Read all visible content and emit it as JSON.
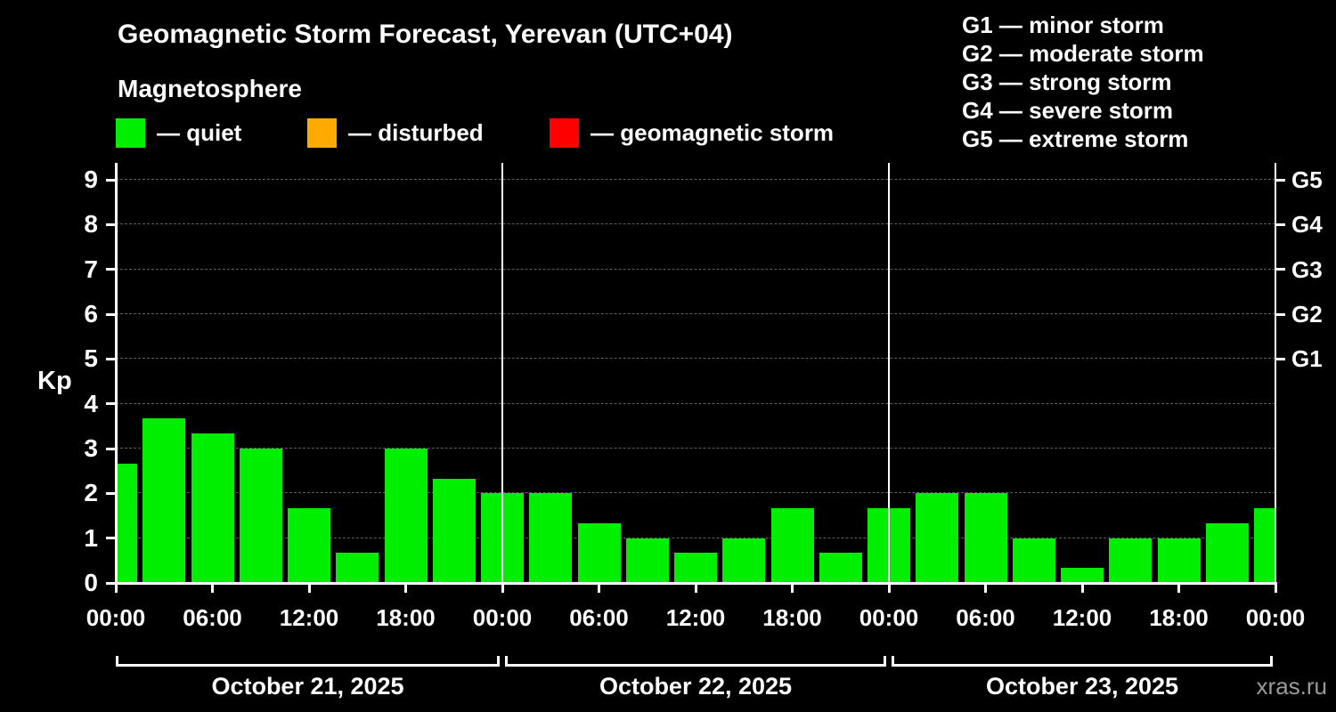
{
  "title": "Geomagnetic Storm Forecast, Yerevan (UTC+04)",
  "subtitle": "Magnetosphere",
  "watermark": "xras.ru",
  "legend": {
    "items": [
      {
        "label": "— quiet",
        "color": "#00ee00"
      },
      {
        "label": "— disturbed",
        "color": "#ffaa00"
      },
      {
        "label": "— geomagnetic storm",
        "color": "#ff0000"
      }
    ]
  },
  "storm_scale_legend": [
    "G1 — minor storm",
    "G2 — moderate storm",
    "G3 — strong storm",
    "G4 — severe storm",
    "G5 — extreme storm"
  ],
  "chart_data": {
    "type": "bar",
    "title": "Geomagnetic Storm Forecast, Yerevan (UTC+04)",
    "ylabel": "Kp",
    "ylim": [
      0,
      9.4
    ],
    "yticks": [
      0,
      1,
      2,
      3,
      4,
      5,
      6,
      7,
      8,
      9
    ],
    "grid": true,
    "bar_interval_hours": 3,
    "bar_color": "#00ee00",
    "bar_status_all": "quiet",
    "values": [
      2.67,
      3.67,
      3.33,
      3.0,
      1.67,
      0.67,
      3.0,
      2.33,
      2.0,
      2.0,
      1.33,
      1.0,
      0.67,
      1.0,
      1.67,
      0.67,
      1.67,
      2.0,
      2.0,
      1.0,
      0.33,
      1.0,
      1.0,
      1.33,
      1.67
    ],
    "x_tick_labels": [
      "00:00",
      "06:00",
      "12:00",
      "18:00",
      "00:00",
      "06:00",
      "12:00",
      "18:00",
      "00:00",
      "06:00",
      "12:00",
      "18:00",
      "00:00"
    ],
    "right_axis": [
      {
        "kp": 9,
        "label": "G5"
      },
      {
        "kp": 8,
        "label": "G4"
      },
      {
        "kp": 7,
        "label": "G3"
      },
      {
        "kp": 6,
        "label": "G2"
      },
      {
        "kp": 5,
        "label": "G1"
      }
    ],
    "days": [
      {
        "label": "October 21, 2025"
      },
      {
        "label": "October 22, 2025"
      },
      {
        "label": "October 23, 2025"
      }
    ],
    "legend_position": "top-left"
  }
}
